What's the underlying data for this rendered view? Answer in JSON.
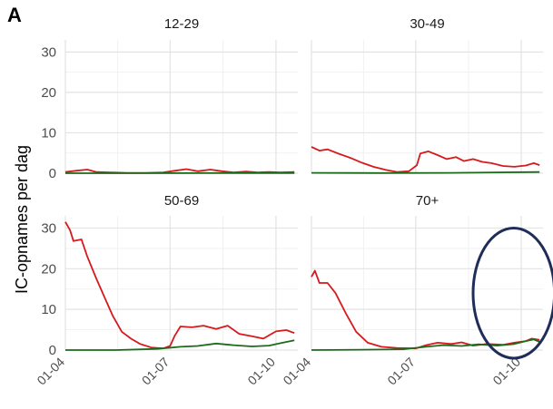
{
  "panel_letter": "A",
  "chart_data": {
    "type": "line",
    "layout": "facet-grid-2x2",
    "ylabel": "IC-opnames per dag",
    "xlabel": "",
    "xlim": [
      "2020-04-01",
      "2020-10-20"
    ],
    "ylim": [
      0,
      33
    ],
    "y_ticks": [
      0,
      10,
      20,
      30
    ],
    "x_ticks": [
      {
        "date": "2020-04-01",
        "label": "01-04"
      },
      {
        "date": "2020-07-01",
        "label": "01-07"
      },
      {
        "date": "2020-10-01",
        "label": "01-10"
      }
    ],
    "grid": true,
    "series_colors": [
      "#d7191c",
      "#1b6b1b"
    ],
    "annotation": {
      "shape": "ellipse",
      "facet": "70+",
      "color": "#1f2d5a",
      "x_from": "2020-08-20",
      "x_to": "2020-10-30",
      "y_from": -2,
      "y_to": 30
    },
    "facets": [
      {
        "title": "12-29",
        "series": [
          {
            "color": "#d7191c",
            "points": [
              [
                "2020-04-01",
                0.3
              ],
              [
                "2020-04-10",
                0.6
              ],
              [
                "2020-04-20",
                0.9
              ],
              [
                "2020-04-28",
                0.3
              ],
              [
                "2020-05-10",
                0.2
              ],
              [
                "2020-05-25",
                0.1
              ],
              [
                "2020-06-10",
                0.1
              ],
              [
                "2020-06-25",
                0.2
              ],
              [
                "2020-07-05",
                0.6
              ],
              [
                "2020-07-15",
                1.0
              ],
              [
                "2020-07-25",
                0.5
              ],
              [
                "2020-08-05",
                0.9
              ],
              [
                "2020-08-15",
                0.5
              ],
              [
                "2020-08-25",
                0.2
              ],
              [
                "2020-09-05",
                0.4
              ],
              [
                "2020-09-15",
                0.2
              ],
              [
                "2020-09-25",
                0.3
              ],
              [
                "2020-10-05",
                0.2
              ],
              [
                "2020-10-17",
                0.3
              ]
            ]
          },
          {
            "color": "#1b6b1b",
            "points": [
              [
                "2020-04-01",
                0.0
              ],
              [
                "2020-06-01",
                0.0
              ],
              [
                "2020-08-01",
                0.05
              ],
              [
                "2020-10-17",
                0.05
              ]
            ]
          }
        ]
      },
      {
        "title": "30-49",
        "series": [
          {
            "color": "#d7191c",
            "points": [
              [
                "2020-04-01",
                6.5
              ],
              [
                "2020-04-08",
                5.6
              ],
              [
                "2020-04-15",
                5.9
              ],
              [
                "2020-04-25",
                4.8
              ],
              [
                "2020-05-05",
                3.8
              ],
              [
                "2020-05-15",
                2.6
              ],
              [
                "2020-05-25",
                1.6
              ],
              [
                "2020-06-05",
                0.8
              ],
              [
                "2020-06-15",
                0.3
              ],
              [
                "2020-06-25",
                0.5
              ],
              [
                "2020-07-02",
                2.0
              ],
              [
                "2020-07-05",
                4.9
              ],
              [
                "2020-07-12",
                5.4
              ],
              [
                "2020-07-20",
                4.5
              ],
              [
                "2020-07-28",
                3.5
              ],
              [
                "2020-08-05",
                4.0
              ],
              [
                "2020-08-12",
                3.0
              ],
              [
                "2020-08-20",
                3.5
              ],
              [
                "2020-08-28",
                2.8
              ],
              [
                "2020-09-05",
                2.5
              ],
              [
                "2020-09-15",
                1.8
              ],
              [
                "2020-09-25",
                1.6
              ],
              [
                "2020-10-05",
                1.9
              ],
              [
                "2020-10-12",
                2.5
              ],
              [
                "2020-10-17",
                2.0
              ]
            ]
          },
          {
            "color": "#1b6b1b",
            "points": [
              [
                "2020-04-01",
                0.1
              ],
              [
                "2020-06-01",
                0.05
              ],
              [
                "2020-08-01",
                0.1
              ],
              [
                "2020-10-17",
                0.3
              ]
            ]
          }
        ]
      },
      {
        "title": "50-69",
        "series": [
          {
            "color": "#d7191c",
            "points": [
              [
                "2020-04-01",
                31.5
              ],
              [
                "2020-04-05",
                29.5
              ],
              [
                "2020-04-08",
                26.8
              ],
              [
                "2020-04-15",
                27.2
              ],
              [
                "2020-04-20",
                23.0
              ],
              [
                "2020-04-28",
                17.5
              ],
              [
                "2020-05-05",
                13.0
              ],
              [
                "2020-05-12",
                8.5
              ],
              [
                "2020-05-20",
                4.5
              ],
              [
                "2020-05-28",
                2.8
              ],
              [
                "2020-06-05",
                1.5
              ],
              [
                "2020-06-15",
                0.6
              ],
              [
                "2020-06-25",
                0.4
              ],
              [
                "2020-07-01",
                1.0
              ],
              [
                "2020-07-05",
                3.5
              ],
              [
                "2020-07-10",
                5.8
              ],
              [
                "2020-07-20",
                5.6
              ],
              [
                "2020-07-30",
                6.0
              ],
              [
                "2020-08-10",
                5.2
              ],
              [
                "2020-08-20",
                6.0
              ],
              [
                "2020-08-30",
                4.0
              ],
              [
                "2020-09-10",
                3.4
              ],
              [
                "2020-09-20",
                2.8
              ],
              [
                "2020-10-01",
                4.6
              ],
              [
                "2020-10-10",
                4.9
              ],
              [
                "2020-10-17",
                4.2
              ]
            ]
          },
          {
            "color": "#1b6b1b",
            "points": [
              [
                "2020-04-01",
                0.0
              ],
              [
                "2020-05-15",
                0.0
              ],
              [
                "2020-06-20",
                0.3
              ],
              [
                "2020-07-10",
                0.8
              ],
              [
                "2020-07-25",
                1.0
              ],
              [
                "2020-08-10",
                1.6
              ],
              [
                "2020-08-25",
                1.2
              ],
              [
                "2020-09-10",
                0.9
              ],
              [
                "2020-09-25",
                1.1
              ],
              [
                "2020-10-05",
                1.7
              ],
              [
                "2020-10-17",
                2.4
              ]
            ]
          }
        ]
      },
      {
        "title": "70+",
        "series": [
          {
            "color": "#d7191c",
            "points": [
              [
                "2020-04-01",
                18.0
              ],
              [
                "2020-04-04",
                19.5
              ],
              [
                "2020-04-08",
                16.5
              ],
              [
                "2020-04-15",
                16.5
              ],
              [
                "2020-04-22",
                14.0
              ],
              [
                "2020-05-01",
                9.0
              ],
              [
                "2020-05-10",
                4.5
              ],
              [
                "2020-05-20",
                1.8
              ],
              [
                "2020-06-01",
                0.8
              ],
              [
                "2020-06-15",
                0.5
              ],
              [
                "2020-07-01",
                0.4
              ],
              [
                "2020-07-10",
                1.2
              ],
              [
                "2020-07-20",
                1.8
              ],
              [
                "2020-08-01",
                1.5
              ],
              [
                "2020-08-10",
                1.9
              ],
              [
                "2020-08-20",
                1.1
              ],
              [
                "2020-09-01",
                1.5
              ],
              [
                "2020-09-15",
                1.3
              ],
              [
                "2020-09-25",
                1.8
              ],
              [
                "2020-10-05",
                2.2
              ],
              [
                "2020-10-10",
                2.8
              ],
              [
                "2020-10-17",
                2.5
              ]
            ]
          },
          {
            "color": "#1b6b1b",
            "points": [
              [
                "2020-04-01",
                0.0
              ],
              [
                "2020-05-15",
                0.1
              ],
              [
                "2020-06-20",
                0.2
              ],
              [
                "2020-07-10",
                0.8
              ],
              [
                "2020-07-25",
                1.2
              ],
              [
                "2020-08-10",
                1.0
              ],
              [
                "2020-08-25",
                1.4
              ],
              [
                "2020-09-10",
                1.1
              ],
              [
                "2020-09-25",
                1.5
              ],
              [
                "2020-10-05",
                2.2
              ],
              [
                "2020-10-12",
                2.6
              ],
              [
                "2020-10-17",
                2.0
              ]
            ]
          }
        ]
      }
    ]
  }
}
